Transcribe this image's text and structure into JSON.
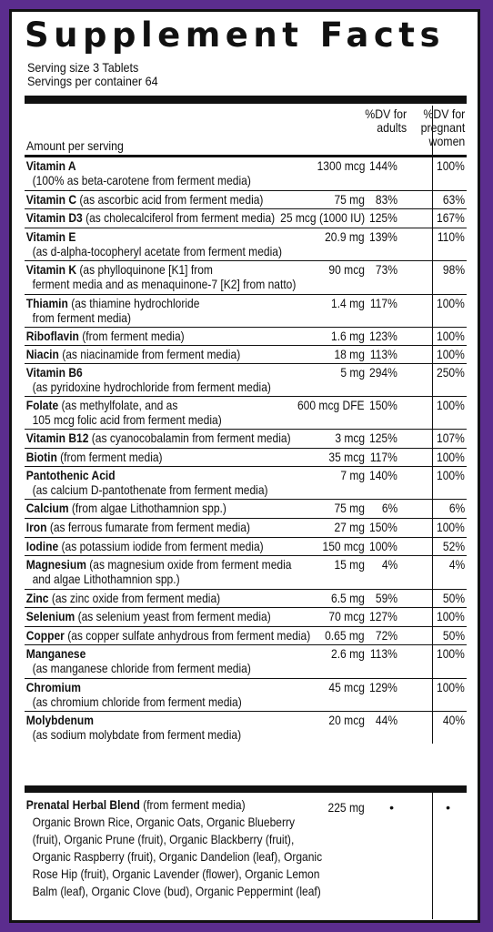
{
  "title": "Supplement Facts",
  "serving_size": "Serving size 3 Tablets",
  "servings_per_container": "Servings per container 64",
  "header": {
    "amount_per_serving": "Amount per serving",
    "dv_adults": [
      "%DV for",
      "adults"
    ],
    "dv_pregnant": [
      "%DV for",
      "pregnant",
      "women"
    ]
  },
  "nutrients": [
    {
      "name": "Vitamin A",
      "lines": [
        "",
        "(100% as beta-carotene from ferment media)"
      ],
      "amount": "1300 mcg",
      "dv_adults": "144%",
      "dv_pregnant": "100%"
    },
    {
      "name": "Vitamin C",
      "lines": [
        " (as ascorbic acid from ferment media)"
      ],
      "amount": "75 mg",
      "dv_adults": "83%",
      "dv_pregnant": "63%"
    },
    {
      "name": "Vitamin D3",
      "lines": [
        " (as cholecalciferol from ferment media)"
      ],
      "amount": "25 mcg (1000 IU)",
      "dv_adults": "125%",
      "dv_pregnant": "167%"
    },
    {
      "name": "Vitamin E",
      "lines": [
        "",
        "(as d-alpha-tocopheryl acetate from ferment media)"
      ],
      "amount": "20.9 mg",
      "dv_adults": "139%",
      "dv_pregnant": "110%"
    },
    {
      "name": "Vitamin K",
      "lines": [
        " (as phylloquinone [K1] from",
        "ferment media and as menaquinone-7 [K2] from natto)"
      ],
      "amount": "90 mcg",
      "dv_adults": "73%",
      "dv_pregnant": "98%"
    },
    {
      "name": "Thiamin",
      "lines": [
        " (as thiamine hydrochloride",
        "from ferment media)"
      ],
      "amount": "1.4 mg",
      "dv_adults": "117%",
      "dv_pregnant": "100%"
    },
    {
      "name": "Riboflavin",
      "lines": [
        " (from ferment media)"
      ],
      "amount": "1.6 mg",
      "dv_adults": "123%",
      "dv_pregnant": "100%"
    },
    {
      "name": "Niacin",
      "lines": [
        " (as niacinamide from ferment media)"
      ],
      "amount": "18 mg",
      "dv_adults": "113%",
      "dv_pregnant": "100%"
    },
    {
      "name": "Vitamin B6",
      "lines": [
        "",
        "(as pyridoxine hydrochloride from ferment media)"
      ],
      "amount": "5 mg",
      "dv_adults": "294%",
      "dv_pregnant": "250%"
    },
    {
      "name": "Folate",
      "lines": [
        " (as methylfolate, and as",
        "105 mcg folic acid from ferment media)"
      ],
      "amount": "600 mcg DFE",
      "dv_adults": "150%",
      "dv_pregnant": "100%"
    },
    {
      "name": "Vitamin B12",
      "lines": [
        " (as cyanocobalamin from ferment media)"
      ],
      "amount": "3 mcg",
      "dv_adults": "125%",
      "dv_pregnant": "107%"
    },
    {
      "name": "Biotin",
      "lines": [
        " (from ferment media)"
      ],
      "amount": "35 mcg",
      "dv_adults": "117%",
      "dv_pregnant": "100%"
    },
    {
      "name": "Pantothenic Acid",
      "lines": [
        "",
        "(as calcium D-pantothenate from ferment media)"
      ],
      "amount": "7 mg",
      "dv_adults": "140%",
      "dv_pregnant": "100%"
    },
    {
      "name": "Calcium",
      "lines": [
        " (from algae Lithothamnion spp.)"
      ],
      "amount": "75 mg",
      "dv_adults": "6%",
      "dv_pregnant": "6%"
    },
    {
      "name": "Iron",
      "lines": [
        " (as ferrous fumarate from ferment media)"
      ],
      "amount": "27 mg",
      "dv_adults": "150%",
      "dv_pregnant": "100%"
    },
    {
      "name": "Iodine",
      "lines": [
        " (as potassium iodide from ferment media)"
      ],
      "amount": "150 mcg",
      "dv_adults": "100%",
      "dv_pregnant": "52%"
    },
    {
      "name": "Magnesium",
      "lines": [
        " (as magnesium oxide from ferment media",
        "and algae Lithothamnion spp.)"
      ],
      "amount": "15 mg",
      "dv_adults": "4%",
      "dv_pregnant": "4%"
    },
    {
      "name": "Zinc",
      "lines": [
        " (as zinc oxide from ferment media)"
      ],
      "amount": "6.5 mg",
      "dv_adults": "59%",
      "dv_pregnant": "50%"
    },
    {
      "name": "Selenium",
      "lines": [
        " (as selenium yeast from ferment media)"
      ],
      "amount": "70 mcg",
      "dv_adults": "127%",
      "dv_pregnant": "100%"
    },
    {
      "name": "Copper",
      "lines": [
        " (as copper sulfate anhydrous from ferment media)"
      ],
      "amount": "0.65 mg",
      "dv_adults": "72%",
      "dv_pregnant": "50%"
    },
    {
      "name": "Manganese",
      "lines": [
        "",
        "(as manganese chloride from ferment media)"
      ],
      "amount": "2.6 mg",
      "dv_adults": "113%",
      "dv_pregnant": "100%"
    },
    {
      "name": "Chromium",
      "lines": [
        "",
        "(as chromium chloride from ferment media)"
      ],
      "amount": "45 mcg",
      "dv_adults": "129%",
      "dv_pregnant": "100%"
    },
    {
      "name": "Molybdenum",
      "lines": [
        "",
        "(as sodium molybdate from ferment media)"
      ],
      "amount": "20 mcg",
      "dv_adults": "44%",
      "dv_pregnant": "40%"
    }
  ],
  "blend": {
    "name": "Prenatal Herbal Blend",
    "qualifier": " (from ferment media)",
    "amount": "225 mg",
    "dv_adults": "•",
    "dv_pregnant": "•",
    "ingredients": [
      "Organic Brown Rice, Organic Oats, Organic Blueberry",
      "(fruit), Organic Prune (fruit), Organic Blackberry (fruit),",
      "Organic Raspberry (fruit), Organic Dandelion (leaf), Organic",
      "Rose Hip (fruit), Organic Lavender (flower), Organic Lemon",
      "Balm (leaf), Organic Clove (bud), Organic Peppermint (leaf)"
    ]
  },
  "colors": {
    "border": "#5b2d8e",
    "ink": "#111111"
  }
}
